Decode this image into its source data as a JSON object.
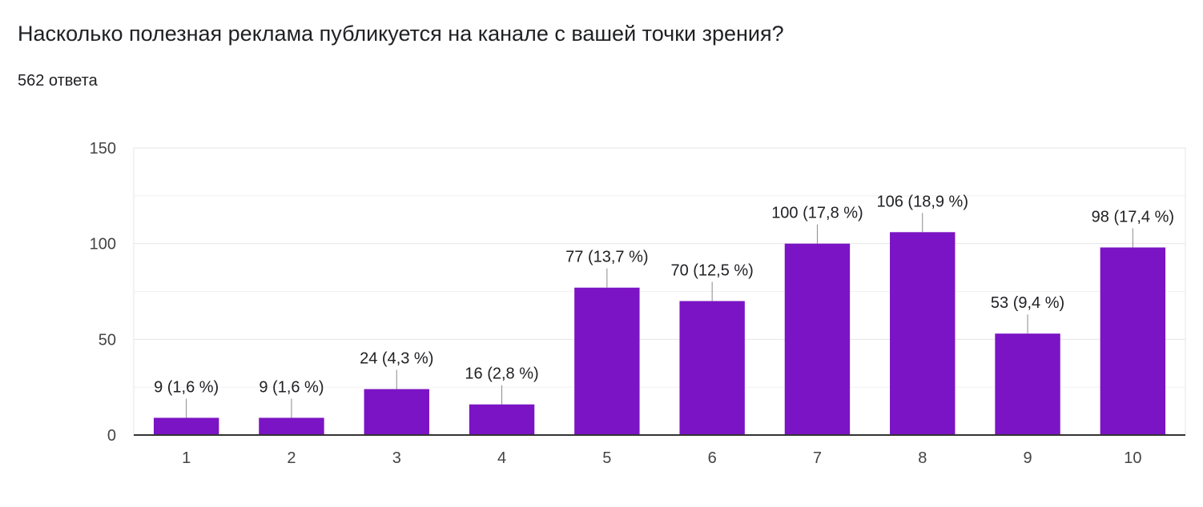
{
  "header": {
    "title": "Насколько полезная реклама публикуется на канале с вашей точки зрения?",
    "subtitle": "562 ответа"
  },
  "colors": {
    "bar": "#7b14c4",
    "grid": "#e6e6e6",
    "axis": "#333333",
    "text": "#202124"
  },
  "chart_data": {
    "type": "bar",
    "title": "Насколько полезная реклама публикуется на канале с вашей точки зрения?",
    "subtitle": "562 ответа",
    "xlabel": "",
    "ylabel": "",
    "categories": [
      "1",
      "2",
      "3",
      "4",
      "5",
      "6",
      "7",
      "8",
      "9",
      "10"
    ],
    "values": [
      9,
      9,
      24,
      16,
      77,
      70,
      100,
      106,
      53,
      98
    ],
    "data_labels": [
      "9 (1,6 %)",
      "9 (1,6 %)",
      "24 (4,3 %)",
      "16 (2,8 %)",
      "77 (13,7 %)",
      "70 (12,5 %)",
      "100 (17,8 %)",
      "106 (18,9 %)",
      "53 (9,4 %)",
      "98 (17,4 %)"
    ],
    "ylim": [
      0,
      150
    ],
    "y_ticks": [
      0,
      50,
      100,
      150
    ],
    "minor_grid_step": 25,
    "grid": true,
    "legend": "none"
  }
}
